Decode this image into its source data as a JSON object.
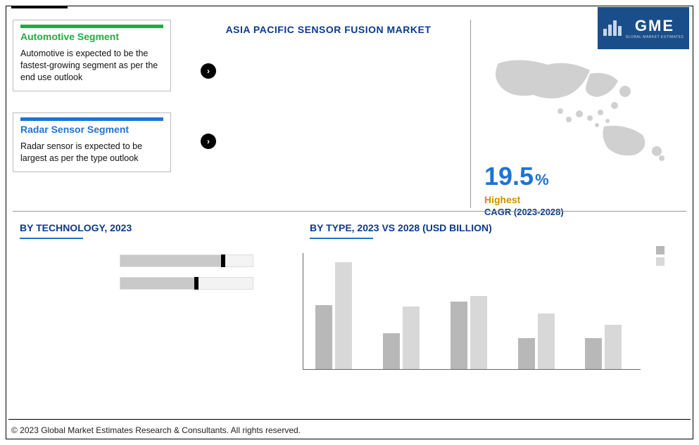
{
  "title": "ASIA PACIFIC SENSOR FUSION MARKET",
  "logo": {
    "text": "GME",
    "subtext": "GLOBAL MARKET ESTIMATES"
  },
  "cards": {
    "automotive": {
      "title": "Automotive Segment",
      "desc": "Automotive is expected to be the fastest-growing segment as per the end use outlook",
      "bar_color": "#1fad3e"
    },
    "radar": {
      "title": "Radar Sensor Segment",
      "desc": "Radar sensor is expected to be largest as per the type outlook",
      "bar_color": "#1e73d6"
    }
  },
  "bullets": {
    "b1": "",
    "b2": ""
  },
  "apac": {
    "pct_value": "19.5",
    "pct_symbol": "%",
    "color": "#1e73d6",
    "label_highest": "Highest",
    "label_cagr": "CAGR (2023-2028)"
  },
  "sections": {
    "tech_title": "BY  TECHNOLOGY, 2023",
    "type_title": "BY TYPE, 2023 VS 2028 (USD BILLION)"
  },
  "tech_chart": {
    "type": "bar-horizontal",
    "categories": [
      "",
      ""
    ],
    "values_pct": [
      78,
      58
    ],
    "fill_color": "#c9c9c9",
    "cap_color": "#000000",
    "track_color": "#f3f3f3"
  },
  "type_chart": {
    "type": "grouped-bar",
    "categories": [
      "",
      "",
      "",
      "",
      ""
    ],
    "series_a_label": "",
    "series_b_label": "",
    "series_a_color": "#b8b8b8",
    "series_b_color": "#d8d8d8",
    "series_a": [
      72,
      40,
      76,
      35,
      35
    ],
    "series_b": [
      120,
      70,
      82,
      62,
      50
    ],
    "ymax": 130,
    "background_color": "#ffffff",
    "axis_color": "#666666"
  },
  "copyright": "© 2023 Global Market Estimates Research & Consultants. All rights reserved."
}
